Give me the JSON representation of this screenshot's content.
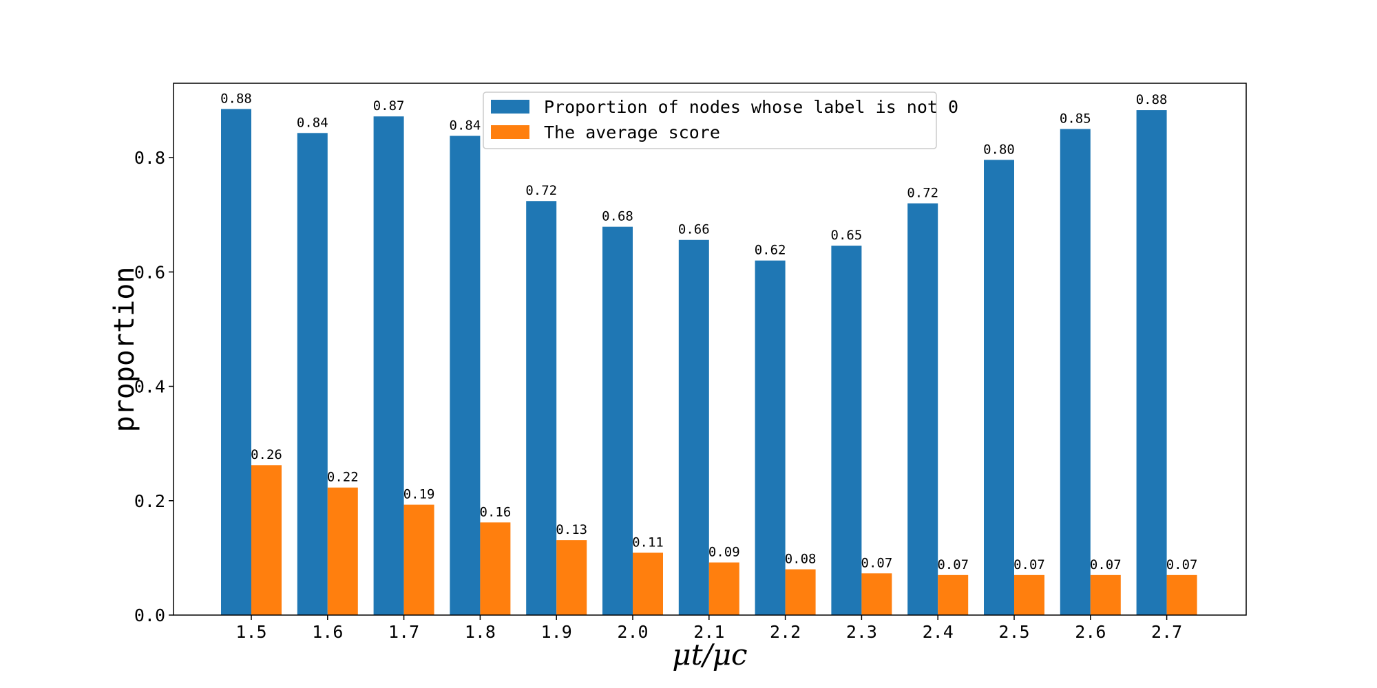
{
  "chart_data": {
    "type": "bar",
    "categories": [
      "1.5",
      "1.6",
      "1.7",
      "1.8",
      "1.9",
      "2.0",
      "2.1",
      "2.2",
      "2.3",
      "2.4",
      "2.5",
      "2.6",
      "2.7"
    ],
    "series": [
      {
        "name": "Proportion of nodes whose label is not 0",
        "color": "#1f77b4",
        "values": [
          0.885,
          0.843,
          0.872,
          0.838,
          0.724,
          0.679,
          0.656,
          0.62,
          0.646,
          0.72,
          0.796,
          0.85,
          0.883
        ],
        "labels": [
          "0.88",
          "0.84",
          "0.87",
          "0.84",
          "0.72",
          "0.68",
          "0.66",
          "0.62",
          "0.65",
          "0.72",
          "0.80",
          "0.85",
          "0.88"
        ]
      },
      {
        "name": "The average score",
        "color": "#ff7f0e",
        "values": [
          0.262,
          0.223,
          0.193,
          0.162,
          0.131,
          0.109,
          0.092,
          0.08,
          0.073,
          0.07,
          0.07,
          0.07,
          0.07
        ],
        "labels": [
          "0.26",
          "0.22",
          "0.19",
          "0.16",
          "0.13",
          "0.11",
          "0.09",
          "0.08",
          "0.07",
          "0.07",
          "0.07",
          "0.07",
          "0.07"
        ]
      }
    ],
    "title": "",
    "xlabel": "μt/μc",
    "ylabel": "proportion",
    "ylim": [
      0,
      0.93
    ],
    "yticks": [
      "0.0",
      "0.2",
      "0.4",
      "0.6",
      "0.8"
    ],
    "ytick_values": [
      0,
      0.2,
      0.4,
      0.6,
      0.8
    ],
    "grid": false,
    "legend_position": "top-center"
  }
}
